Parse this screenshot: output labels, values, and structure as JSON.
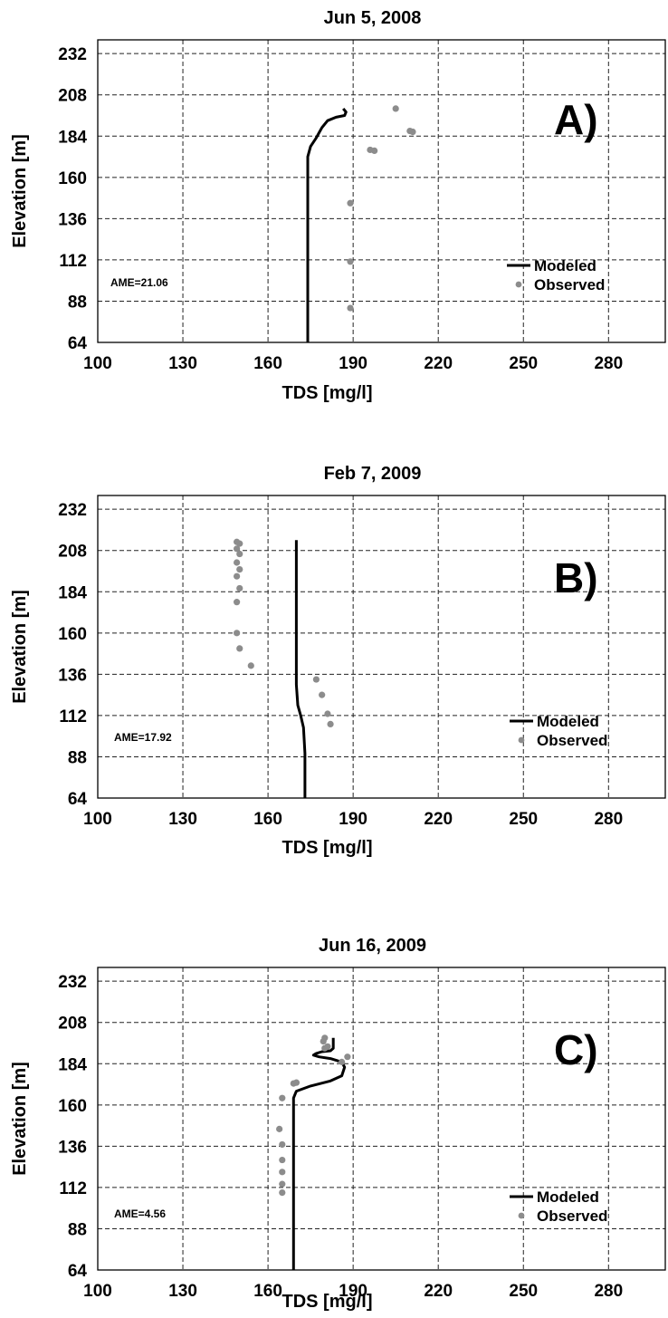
{
  "chart_data": [
    {
      "type": "scatter",
      "title": "Jun 5, 2008",
      "xlabel": "TDS [mg/l]",
      "ylabel": "Elevation [m]",
      "xlim": [
        100,
        300
      ],
      "ylim": [
        64,
        240
      ],
      "x_ticks": [
        "100",
        "130",
        "160",
        "190",
        "220",
        "250",
        "280"
      ],
      "y_ticks": [
        "64",
        "88",
        "112",
        "136",
        "160",
        "184",
        "208",
        "232"
      ],
      "grid": true,
      "legend_position": "right",
      "panel_label": "A)",
      "annotation": "AME=21.06",
      "series": [
        {
          "name": "Modeled",
          "kind": "line",
          "color": "#000000",
          "points": [
            [
              174,
              64
            ],
            [
              174,
              110
            ],
            [
              174,
              150
            ],
            [
              174,
              172
            ],
            [
              175,
              178
            ],
            [
              177,
              183
            ],
            [
              178,
              186
            ],
            [
              179,
              189
            ],
            [
              181,
              193
            ],
            [
              184,
              195
            ],
            [
              187,
              196
            ],
            [
              187.5,
              198
            ],
            [
              186.5,
              200
            ]
          ]
        },
        {
          "name": "Observed",
          "kind": "points",
          "color": "#8c8c8c",
          "points": [
            [
              189,
              84
            ],
            [
              189,
              111
            ],
            [
              189,
              145
            ],
            [
              196,
              176
            ],
            [
              197.5,
              175.5
            ],
            [
              210,
              187
            ],
            [
              211,
              186.5
            ],
            [
              205,
              200
            ]
          ]
        }
      ]
    },
    {
      "type": "scatter",
      "title": "Feb 7, 2009",
      "xlabel": "TDS [mg/l]",
      "ylabel": "Elevation [m]",
      "xlim": [
        100,
        300
      ],
      "ylim": [
        64,
        240
      ],
      "x_ticks": [
        "100",
        "130",
        "160",
        "190",
        "220",
        "250",
        "280"
      ],
      "y_ticks": [
        "64",
        "88",
        "112",
        "136",
        "160",
        "184",
        "208",
        "232"
      ],
      "grid": true,
      "legend_position": "right",
      "panel_label": "B)",
      "annotation": "AME=17.92",
      "series": [
        {
          "name": "Modeled",
          "kind": "line",
          "color": "#000000",
          "points": [
            [
              173,
              64
            ],
            [
              173,
              90
            ],
            [
              172.5,
              105
            ],
            [
              171.5,
              112
            ],
            [
              170.5,
              118
            ],
            [
              170,
              130
            ],
            [
              170,
              160
            ],
            [
              170,
              190
            ],
            [
              170,
              214
            ]
          ]
        },
        {
          "name": "Observed",
          "kind": "points",
          "color": "#8c8c8c",
          "points": [
            [
              149,
              213
            ],
            [
              150,
              212
            ],
            [
              149,
              209
            ],
            [
              150,
              206
            ],
            [
              149,
              201
            ],
            [
              150,
              197
            ],
            [
              149,
              193
            ],
            [
              150,
              186
            ],
            [
              149,
              178
            ],
            [
              149,
              160
            ],
            [
              150,
              151
            ],
            [
              154,
              141
            ],
            [
              177,
              133
            ],
            [
              179,
              124
            ],
            [
              181,
              113
            ],
            [
              182,
              107
            ]
          ]
        }
      ]
    },
    {
      "type": "scatter",
      "title": "Jun 16, 2009",
      "xlabel": "TDS [mg/l]",
      "ylabel": "Elevation [m]",
      "xlim": [
        100,
        300
      ],
      "ylim": [
        64,
        240
      ],
      "x_ticks": [
        "100",
        "130",
        "160",
        "190",
        "220",
        "250",
        "280"
      ],
      "y_ticks": [
        "64",
        "88",
        "112",
        "136",
        "160",
        "184",
        "208",
        "232"
      ],
      "grid": true,
      "legend_position": "right",
      "panel_label": "C)",
      "annotation": "AME=4.56",
      "series": [
        {
          "name": "Modeled",
          "kind": "line",
          "color": "#000000",
          "points": [
            [
              169,
              64
            ],
            [
              169,
              100
            ],
            [
              169,
              140
            ],
            [
              169,
              164
            ],
            [
              170,
              168
            ],
            [
              175,
              171
            ],
            [
              182,
              174
            ],
            [
              186,
              177
            ],
            [
              187,
              182
            ],
            [
              186,
              185
            ],
            [
              182,
              187
            ],
            [
              178,
              188
            ],
            [
              176,
              189
            ],
            [
              177,
              190
            ],
            [
              179,
              191
            ],
            [
              182,
              191.5
            ],
            [
              183,
              193
            ],
            [
              183,
              195
            ],
            [
              183,
              197
            ],
            [
              183,
              198
            ],
            [
              183,
              199
            ]
          ]
        },
        {
          "name": "Observed",
          "kind": "points",
          "color": "#8c8c8c",
          "points": [
            [
              165,
              109
            ],
            [
              165,
              114
            ],
            [
              165,
              121
            ],
            [
              165,
              128
            ],
            [
              165,
              137
            ],
            [
              164,
              146
            ],
            [
              165,
              164
            ],
            [
              169,
              172.5
            ],
            [
              170,
              173
            ],
            [
              186,
              185
            ],
            [
              188,
              188
            ],
            [
              180,
              193
            ],
            [
              181,
              194
            ],
            [
              179.5,
              197
            ],
            [
              180,
              199
            ]
          ]
        }
      ]
    }
  ]
}
